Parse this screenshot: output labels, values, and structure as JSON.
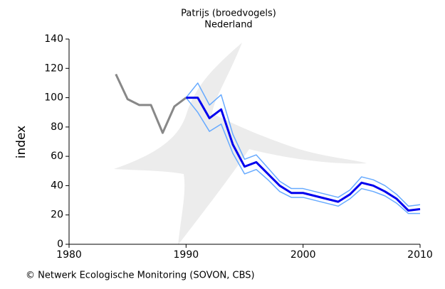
{
  "chart_data": {
    "type": "line",
    "title": "Patrijs (broedvogels)",
    "subtitle": "Nederland",
    "y_label": "index",
    "credit": "©  Netwerk Ecologische Monitoring (SOVON, CBS)",
    "x": [
      1984,
      1985,
      1986,
      1987,
      1988,
      1989,
      1990,
      1991,
      1992,
      1993,
      1994,
      1995,
      1996,
      1997,
      1998,
      1999,
      2000,
      2001,
      2002,
      2003,
      2004,
      2005,
      2006,
      2007,
      2008,
      2009,
      2010
    ],
    "series": [
      {
        "color": "#888888",
        "width": 3,
        "values": [
          116,
          99,
          95,
          95,
          76,
          94,
          100,
          null,
          null,
          null,
          null,
          null,
          null,
          null,
          null,
          null,
          null,
          null,
          null,
          null,
          null,
          null,
          null,
          null,
          null,
          null,
          null
        ]
      },
      {
        "color": "#66aaff",
        "width": 1.5,
        "values": [
          null,
          null,
          null,
          null,
          null,
          null,
          100,
          110,
          95,
          102,
          75,
          58,
          61,
          52,
          43,
          38,
          38,
          36,
          34,
          32,
          37,
          46,
          44,
          40,
          34,
          26,
          27
        ]
      },
      {
        "color": "#66aaff",
        "width": 1.5,
        "values": [
          null,
          null,
          null,
          null,
          null,
          null,
          100,
          90,
          77,
          82,
          62,
          48,
          51,
          44,
          36,
          32,
          32,
          30,
          28,
          26,
          31,
          38,
          36,
          33,
          28,
          21,
          21
        ]
      },
      {
        "color": "#0000ee",
        "width": 3,
        "values": [
          null,
          null,
          null,
          null,
          null,
          null,
          100,
          100,
          86,
          92,
          68,
          53,
          56,
          48,
          40,
          35,
          35,
          33,
          31,
          29,
          34,
          42,
          40,
          36,
          31,
          23,
          24
        ]
      }
    ],
    "xlim": [
      1980,
      2010
    ],
    "xticks": [
      1980,
      1990,
      2000,
      2010
    ],
    "ylim": [
      0,
      140
    ],
    "yticks": [
      0,
      20,
      40,
      60,
      80,
      100,
      120,
      140
    ]
  }
}
